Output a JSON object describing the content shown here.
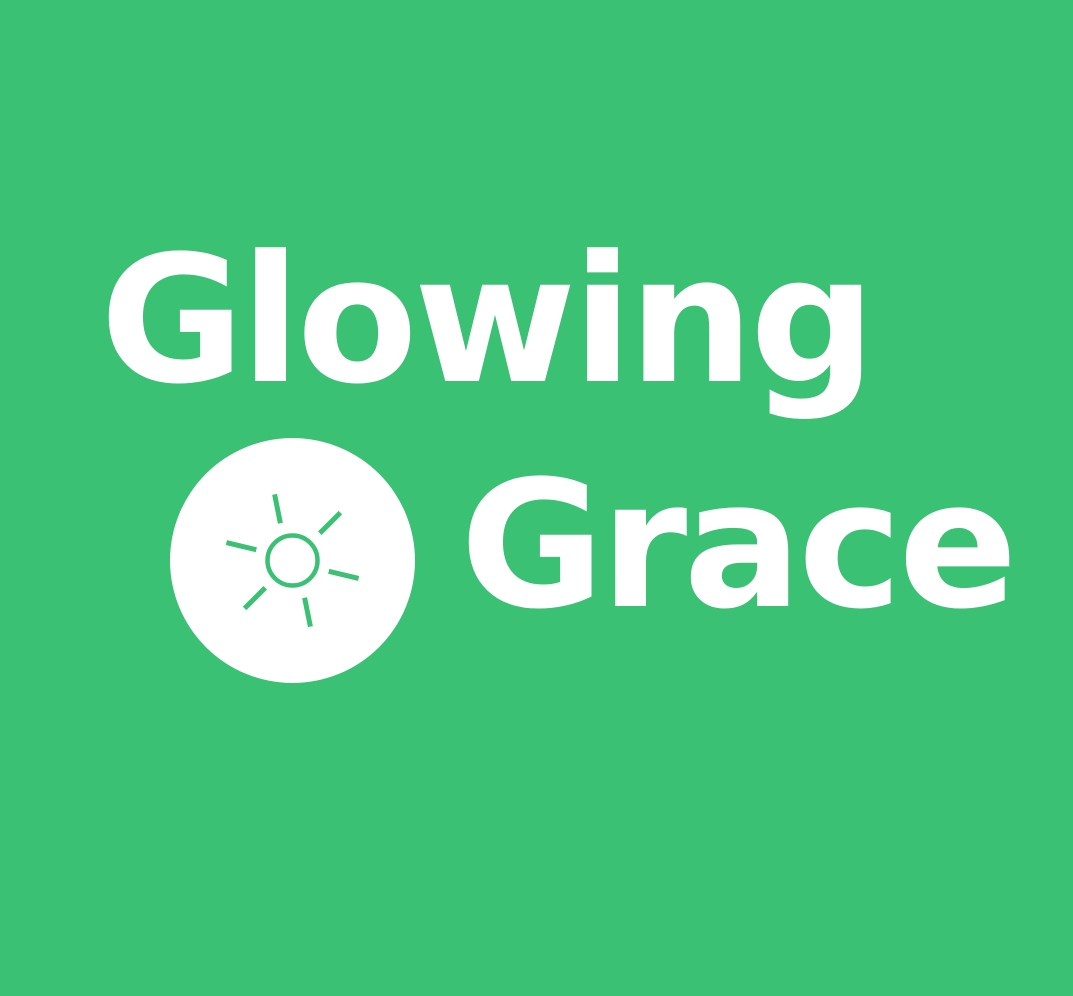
{
  "logo": {
    "line1": "Glowing",
    "line2": "Grace",
    "icon": "sun-icon",
    "colors": {
      "background": "#3AC174",
      "foreground": "#FFFFFF"
    }
  }
}
